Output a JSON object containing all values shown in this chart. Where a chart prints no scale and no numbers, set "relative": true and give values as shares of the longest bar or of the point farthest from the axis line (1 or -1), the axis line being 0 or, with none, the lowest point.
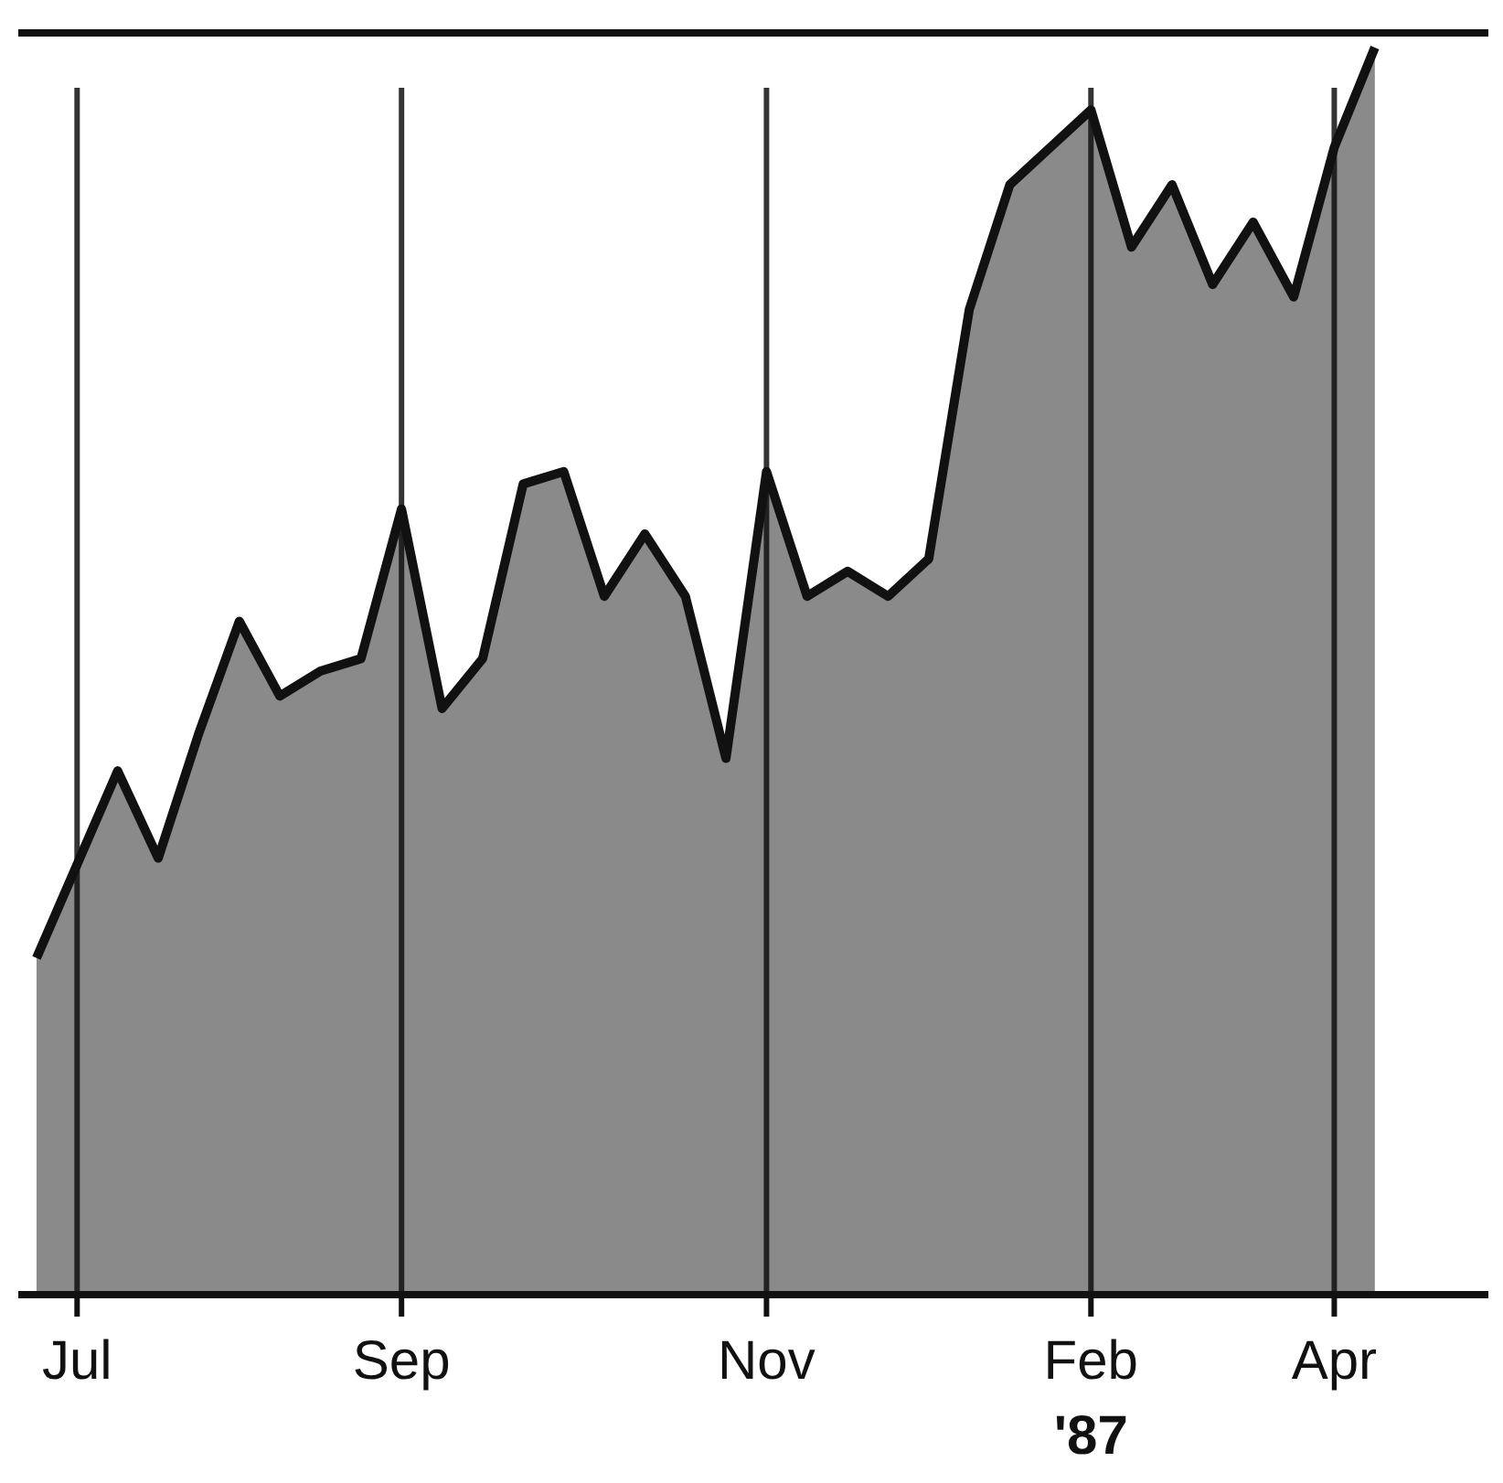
{
  "chart_data": {
    "type": "area",
    "relative": true,
    "categories": [
      null,
      "Jul",
      null,
      null,
      null,
      null,
      null,
      null,
      null,
      "Sep",
      null,
      null,
      null,
      null,
      null,
      null,
      null,
      null,
      "Nov",
      null,
      null,
      null,
      null,
      null,
      null,
      null,
      "Feb",
      null,
      null,
      null,
      null,
      null,
      "Apr",
      null
    ],
    "series": [
      {
        "color": "#8a8a8a",
        "values": [
          0.27,
          0.345,
          0.42,
          0.35,
          0.45,
          0.54,
          0.48,
          0.5,
          0.51,
          0.63,
          0.47,
          0.51,
          0.65,
          0.66,
          0.56,
          0.61,
          0.56,
          0.43,
          0.66,
          0.56,
          0.58,
          0.56,
          0.59,
          0.79,
          0.89,
          0.92,
          0.95,
          0.84,
          0.89,
          0.81,
          0.86,
          0.8,
          0.92,
          1
        ]
      }
    ],
    "grid": "x",
    "annotations": [
      "'87"
    ]
  }
}
